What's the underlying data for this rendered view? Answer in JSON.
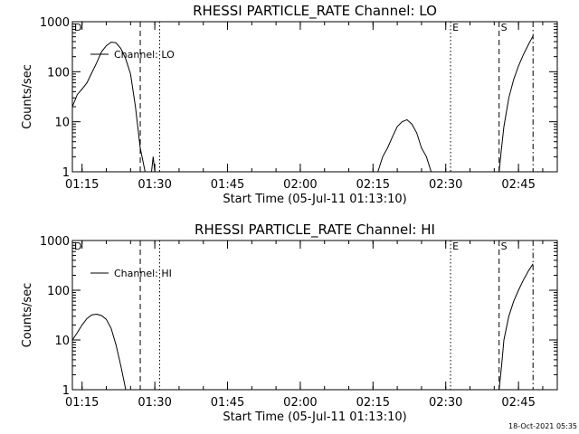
{
  "chart_data": [
    {
      "type": "line",
      "title": "RHESSI PARTICLE_RATE Channel: LO",
      "xlabel": "Start Time (05-Jul-11 01:13:10)",
      "ylabel": "Counts/sec",
      "y_scale": "log",
      "ylim": [
        1,
        1000
      ],
      "xlim": [
        "01:13",
        "02:53"
      ],
      "x_ticks": [
        "01:15",
        "01:30",
        "01:45",
        "02:00",
        "02:15",
        "02:30",
        "02:45"
      ],
      "y_ticks": [
        "1",
        "10",
        "100",
        "1000"
      ],
      "legend": {
        "entries": [
          "Channel: LO"
        ],
        "placement": "upper-left"
      },
      "markers": [
        {
          "x": "01:13",
          "style": "dash-dot",
          "label": "D"
        },
        {
          "x": "01:27",
          "style": "dashed",
          "label": ""
        },
        {
          "x": "01:31",
          "style": "dotted",
          "label": ""
        },
        {
          "x": "02:31",
          "style": "dotted",
          "label": "E"
        },
        {
          "x": "02:41",
          "style": "dashed",
          "label": "S"
        },
        {
          "x": "02:48",
          "style": "dash-dot",
          "label": ""
        }
      ],
      "series": [
        {
          "name": "Channel: LO",
          "segments": [
            {
              "x": [
                "01:13",
                "01:14",
                "01:15",
                "01:16",
                "01:17",
                "01:18",
                "01:19",
                "01:20",
                "01:21",
                "01:22",
                "01:23",
                "01:24",
                "01:25",
                "01:26",
                "01:27",
                "01:28"
              ],
              "y": [
                20,
                35,
                45,
                60,
                95,
                150,
                250,
                330,
                390,
                380,
                290,
                180,
                90,
                20,
                3,
                1
              ]
            },
            {
              "x": [
                "01:29:20",
                "01:29:40",
                "01:30:00"
              ],
              "y": [
                1,
                2,
                1
              ]
            },
            {
              "x": [
                "02:16",
                "02:17",
                "02:18",
                "02:19",
                "02:20",
                "02:21",
                "02:22",
                "02:23",
                "02:24",
                "02:25",
                "02:26",
                "02:27"
              ],
              "y": [
                1,
                2,
                3,
                5,
                8,
                10,
                11,
                9,
                6,
                3,
                2,
                1
              ]
            },
            {
              "x": [
                "02:41",
                "02:41:30",
                "02:42",
                "02:43",
                "02:44",
                "02:45",
                "02:46",
                "02:47",
                "02:48"
              ],
              "y": [
                1,
                3,
                8,
                30,
                70,
                130,
                220,
                340,
                520
              ]
            }
          ]
        }
      ]
    },
    {
      "type": "line",
      "title": "RHESSI PARTICLE_RATE Channel: HI",
      "xlabel": "Start Time (05-Jul-11 01:13:10)",
      "ylabel": "Counts/sec",
      "y_scale": "log",
      "ylim": [
        1,
        1000
      ],
      "xlim": [
        "01:13",
        "02:53"
      ],
      "x_ticks": [
        "01:15",
        "01:30",
        "01:45",
        "02:00",
        "02:15",
        "02:30",
        "02:45"
      ],
      "y_ticks": [
        "1",
        "10",
        "100",
        "1000"
      ],
      "legend": {
        "entries": [
          "Channel: HI"
        ],
        "placement": "upper-left"
      },
      "markers": [
        {
          "x": "01:13",
          "style": "dash-dot",
          "label": "D"
        },
        {
          "x": "01:27",
          "style": "dashed",
          "label": ""
        },
        {
          "x": "01:31",
          "style": "dotted",
          "label": ""
        },
        {
          "x": "02:31",
          "style": "dotted",
          "label": "E"
        },
        {
          "x": "02:41",
          "style": "dashed",
          "label": "S"
        },
        {
          "x": "02:48",
          "style": "dash-dot",
          "label": ""
        }
      ],
      "series": [
        {
          "name": "Channel: HI",
          "segments": [
            {
              "x": [
                "01:13",
                "01:14",
                "01:15",
                "01:16",
                "01:17",
                "01:18",
                "01:19",
                "01:20",
                "01:21",
                "01:22",
                "01:23",
                "01:24"
              ],
              "y": [
                10,
                14,
                20,
                27,
                32,
                33,
                31,
                26,
                17,
                8,
                3,
                1
              ]
            },
            {
              "x": [
                "02:41",
                "02:41:30",
                "02:42",
                "02:43",
                "02:44",
                "02:45",
                "02:46",
                "02:47",
                "02:48"
              ],
              "y": [
                1,
                3,
                10,
                30,
                60,
                100,
                160,
                240,
                340
              ]
            }
          ]
        }
      ]
    }
  ],
  "footer": {
    "timestamp": "18-Oct-2021 05:35"
  }
}
